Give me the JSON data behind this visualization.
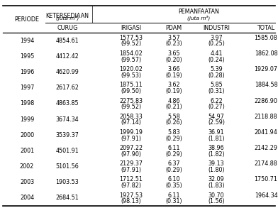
{
  "rows": [
    {
      "year": "1994",
      "curug": "4854.61",
      "irigasi": "1577.53",
      "pdam": "3.57",
      "industri": "3.97",
      "total": "1585.08",
      "irigasi_pct": "(99.52)",
      "pdam_pct": "(0.23)",
      "industri_pct": "(0.25)"
    },
    {
      "year": "1995",
      "curug": "4412.42",
      "irigasi": "1854.02",
      "pdam": "3.65",
      "industri": "4.41",
      "total": "1862.08",
      "irigasi_pct": "(99.57)",
      "pdam_pct": "(0.20)",
      "industri_pct": "(0.24)"
    },
    {
      "year": "1996",
      "curug": "4620.99",
      "irigasi": "1920.02",
      "pdam": "3.66",
      "industri": "5.39",
      "total": "1929.07",
      "irigasi_pct": "(99.53)",
      "pdam_pct": "(0.19)",
      "industri_pct": "(0.28)"
    },
    {
      "year": "1997",
      "curug": "2617.62",
      "irigasi": "1875.11",
      "pdam": "3.62",
      "industri": "5.85",
      "total": "1884.58",
      "irigasi_pct": "(99.50)",
      "pdam_pct": "(0.19)",
      "industri_pct": "(0.31)"
    },
    {
      "year": "1998",
      "curug": "4863.85",
      "irigasi": "2275.83",
      "pdam": "4.86",
      "industri": "6.22",
      "total": "2286.90",
      "irigasi_pct": "(99.52)",
      "pdam_pct": "(0.21)",
      "industri_pct": "(0.27)"
    },
    {
      "year": "1999",
      "curug": "3674.34",
      "irigasi": "2058.33",
      "pdam": "5.58",
      "industri": "54.97",
      "total": "2118.88",
      "irigasi_pct": "(97.14)",
      "pdam_pct": "(0.26)",
      "industri_pct": "(2.59)"
    },
    {
      "year": "2000",
      "curug": "3539.37",
      "irigasi": "1999.19",
      "pdam": "5.83",
      "industri": "36.91",
      "total": "2041.94",
      "irigasi_pct": "(97.91)",
      "pdam_pct": "(0.29)",
      "industri_pct": "(1.81)"
    },
    {
      "year": "2001",
      "curug": "4501.91",
      "irigasi": "2097.22",
      "pdam": "6.11",
      "industri": "38.96",
      "total": "2142.29",
      "irigasi_pct": "(97.90)",
      "pdam_pct": "(0.29)",
      "industri_pct": "(1.82)"
    },
    {
      "year": "2002",
      "curug": "5101.56",
      "irigasi": "2129.37",
      "pdam": "6.37",
      "industri": "39.13",
      "total": "2174.88",
      "irigasi_pct": "(97.91)",
      "pdam_pct": "(0.29)",
      "industri_pct": "(1.80)"
    },
    {
      "year": "2003",
      "curug": "1903.53",
      "irigasi": "1712.51",
      "pdam": "6.10",
      "industri": "32.09",
      "total": "1750.71",
      "irigasi_pct": "(97.82)",
      "pdam_pct": "(0.35)",
      "industri_pct": "(1.83)"
    },
    {
      "year": "2004",
      "curug": "2684.51",
      "irigasi": "1927.53",
      "pdam": "6.11",
      "industri": "30.70",
      "total": "1964.34",
      "irigasi_pct": "(98.13)",
      "pdam_pct": "(0.31)",
      "industri_pct": "(1.56)"
    }
  ],
  "bg_color": "#ffffff",
  "text_color": "#000000",
  "font_size": 5.8,
  "header_font_size": 5.8
}
